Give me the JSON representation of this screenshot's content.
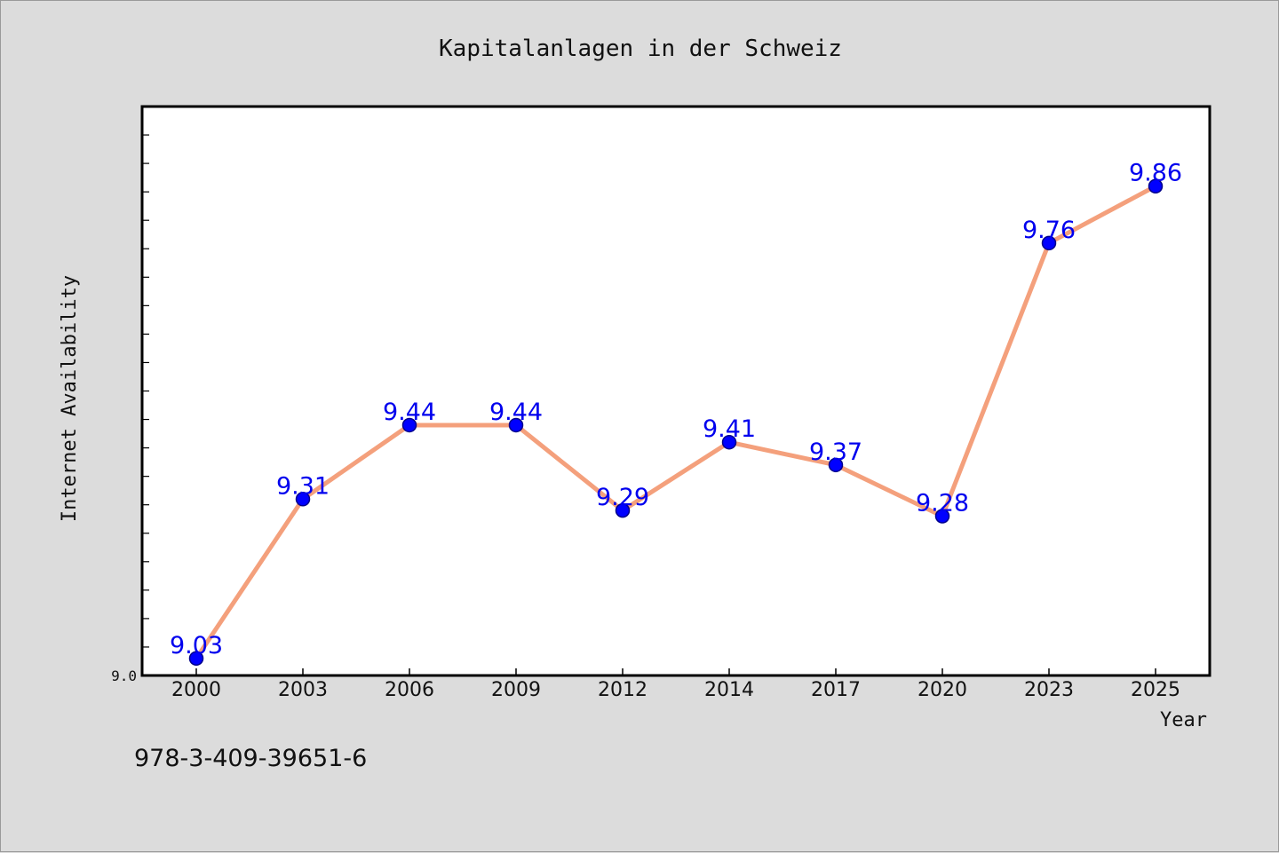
{
  "chart_data": {
    "type": "line",
    "title": "Kapitalanlagen in der Schweiz",
    "xlabel": "Year",
    "ylabel": "Internet Availability",
    "categories": [
      "2000",
      "2003",
      "2006",
      "2009",
      "2012",
      "2014",
      "2017",
      "2020",
      "2023",
      "2025"
    ],
    "series": [
      {
        "values": [
          9.03,
          9.31,
          9.44,
          9.44,
          9.29,
          9.41,
          9.37,
          9.28,
          9.76,
          9.86
        ],
        "data_labels": [
          "9.03",
          "9.31",
          "9.44",
          "9.44",
          "9.29",
          "9.41",
          "9.37",
          "9.28",
          "9.76",
          "9.86"
        ]
      }
    ],
    "ylim": [
      9.0,
      10.0
    ],
    "y_tick_labels": [
      "9.0"
    ],
    "grid": false,
    "colors": {
      "line": "#f4a07c",
      "marker_fill": "#0000ff",
      "marker_edge": "#00008b",
      "data_label": "#0000ee",
      "plot_background": "#ffffff",
      "figure_background": "#dcdcdc"
    }
  },
  "footer": {
    "isbn": "978-3-409-39651-6"
  }
}
